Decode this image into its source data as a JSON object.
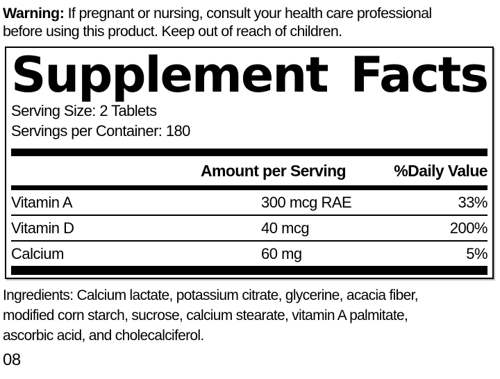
{
  "warning": {
    "label": "Warning:",
    "line1": " If pregnant or nursing, consult your health care professional",
    "line2": "before using this product. Keep out of reach of children."
  },
  "panel": {
    "title": {
      "word1": "Supplement",
      "word2": "Facts"
    },
    "serving_size": "Serving Size: 2 Tablets",
    "servings_per_container": "Servings per Container: 180",
    "header": {
      "amount": "Amount per Serving",
      "daily_value": "%Daily Value"
    },
    "rows": [
      {
        "name": "Vitamin A",
        "amount": "300 mcg RAE",
        "daily_value": "33%"
      },
      {
        "name": "Vitamin D",
        "amount": "40 mcg",
        "daily_value": "200%"
      },
      {
        "name": "Calcium",
        "amount": "60 mg",
        "daily_value": "5%"
      }
    ]
  },
  "ingredients": {
    "lines": [
      "Ingredients: Calcium lactate, potassium citrate, glycerine, acacia fiber,",
      "modified corn starch, sucrose, calcium stearate, vitamin A palmitate,",
      "ascorbic acid, and cholecalciferol."
    ]
  },
  "footer": {
    "code": "08"
  },
  "colors": {
    "text": "#000000",
    "background": "#ffffff",
    "rule": "#000000"
  }
}
